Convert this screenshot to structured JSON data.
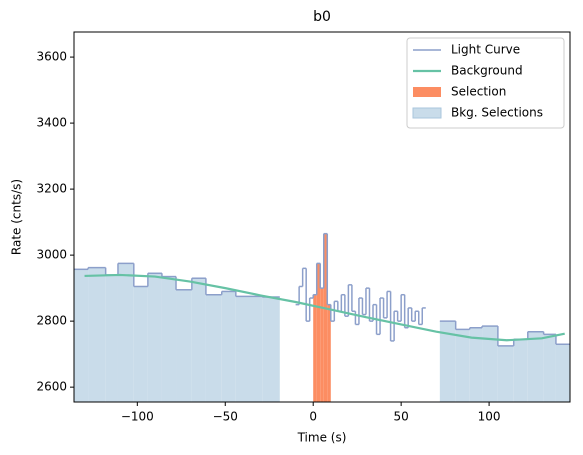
{
  "chart_data": {
    "type": "step",
    "title": "b0",
    "x_label": "Time (s)",
    "y_label": "Rate (cnts/s)",
    "xlim": [
      -136,
      146
    ],
    "ylim": [
      2555,
      3676
    ],
    "xticks": [
      {
        "value": -100,
        "label": "−100"
      },
      {
        "value": -50,
        "label": "−50"
      },
      0,
      50,
      100
    ],
    "yticks": [
      2600,
      2800,
      3000,
      3200,
      3400,
      3600
    ],
    "legend": "upper right",
    "light_curve": {
      "name": "Light Curve",
      "color": "#8c9fca",
      "bins": [
        -136,
        -128,
        -118,
        -111,
        -102,
        -94,
        -86,
        -78,
        -69,
        -61,
        -52,
        -44,
        -29,
        -19,
        -10,
        -8,
        -6,
        -4,
        -2,
        0,
        2,
        4,
        6,
        8,
        10,
        12,
        14,
        16,
        18,
        20,
        22,
        24,
        26,
        28,
        30,
        32,
        34,
        36,
        38,
        40,
        42,
        44,
        46,
        48,
        50,
        52,
        54,
        56,
        58,
        60,
        62,
        64,
        72,
        81,
        89,
        96,
        105,
        114,
        122,
        131,
        138,
        146
      ],
      "values": [
        2957,
        2962,
        2940,
        2975,
        2905,
        2945,
        2935,
        2895,
        2930,
        2880,
        2890,
        2875,
        2873,
        null,
        2850,
        2905,
        2960,
        2800,
        2870,
        2880,
        2975,
        2900,
        3065,
        2850,
        2800,
        2860,
        2830,
        2880,
        2815,
        2910,
        2830,
        2790,
        2870,
        2820,
        2900,
        2800,
        2850,
        2760,
        2870,
        2810,
        2890,
        2740,
        2830,
        2800,
        2880,
        2780,
        2840,
        2800,
        2830,
        2790,
        2840,
        null,
        2800,
        2775,
        2780,
        2785,
        2725,
        2745,
        2768,
        2760,
        2730
      ]
    },
    "background": {
      "name": "Background",
      "color": "#66c2a5",
      "x": [
        -130,
        -110,
        -90,
        -70,
        -50,
        -30,
        -10,
        10,
        30,
        50,
        70,
        90,
        110,
        130,
        143
      ],
      "values": [
        2937,
        2940,
        2935,
        2920,
        2900,
        2878,
        2858,
        2835,
        2812,
        2790,
        2768,
        2750,
        2742,
        2748,
        2762
      ]
    },
    "selection": {
      "name": "Selection",
      "color": "#fc8d62",
      "range": [
        0,
        10
      ]
    },
    "bkg_selections": {
      "name": "Bkg. Selections",
      "color": "#c9dcea",
      "edge": "#a9c6dc",
      "ranges": [
        [
          -136,
          -19
        ],
        [
          72,
          146
        ]
      ]
    }
  }
}
